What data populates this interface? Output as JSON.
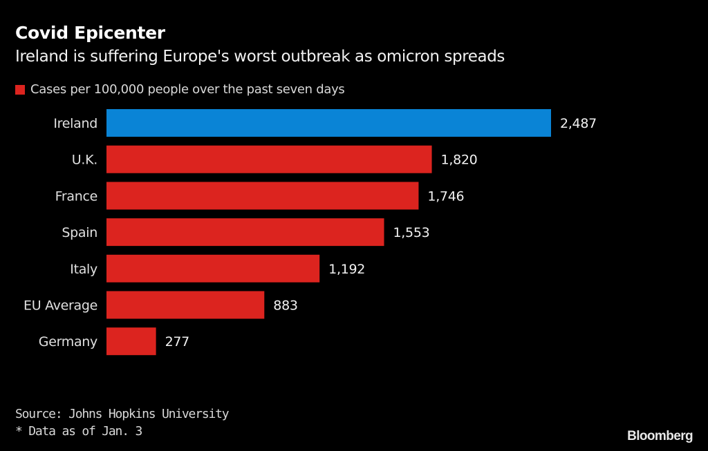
{
  "chart_data": {
    "type": "bar",
    "orientation": "horizontal",
    "title": "Covid Epicenter",
    "subtitle": "Ireland is suffering Europe's worst outbreak as omicron spreads",
    "legend": [
      {
        "label": "Cases per 100,000 people over the past seven days",
        "color": "#dc241f"
      }
    ],
    "legend_position": "top-left",
    "categories": [
      "Ireland",
      "U.K.",
      "France",
      "Spain",
      "Italy",
      "EU Average",
      "Germany"
    ],
    "values": [
      2487,
      1820,
      1746,
      1553,
      1192,
      883,
      277
    ],
    "value_labels": [
      "2,487",
      "1,820",
      "1,746",
      "1,553",
      "1,192",
      "883",
      "277"
    ],
    "colors": [
      "#0a84d6",
      "#dc241f",
      "#dc241f",
      "#dc241f",
      "#dc241f",
      "#dc241f",
      "#dc241f"
    ],
    "xlabel": "",
    "ylabel": "",
    "xlim": [
      0,
      2487
    ],
    "grid": false,
    "source": "Source: Johns Hopkins University",
    "note": "* Data as of Jan. 3",
    "brand": "Bloomberg"
  }
}
